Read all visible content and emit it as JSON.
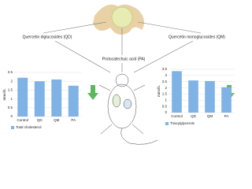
{
  "labels": {
    "qd": "Quercetin diglucosides (QD)",
    "pa": "Protocatechuic acid (PA)",
    "qm": "Quercetin monoglucosides (QM)"
  },
  "chart_data": [
    {
      "type": "bar",
      "ylabel": "mmol/L",
      "categories": [
        "Control",
        "QD",
        "QM",
        "PA"
      ],
      "values": [
        2.2,
        2.0,
        2.1,
        1.75
      ],
      "series_name": "Total cholesterol",
      "color": "#7fb2e5",
      "ylim": [
        0,
        2.5
      ],
      "yticks": [
        0,
        0.5,
        1,
        1.5,
        2,
        2.5
      ],
      "grid": true
    },
    {
      "type": "bar",
      "ylabel": "mmol/L",
      "categories": [
        "Control",
        "QD",
        "QM",
        "PA"
      ],
      "values": [
        3.35,
        2.6,
        2.55,
        2.05
      ],
      "series_name": "Triacylglycerols",
      "color": "#7fb2e5",
      "ylim": [
        0,
        3.5
      ],
      "yticks": [
        0,
        0.5,
        1,
        1.5,
        2,
        2.5,
        3,
        3.5
      ],
      "grid": true
    }
  ]
}
